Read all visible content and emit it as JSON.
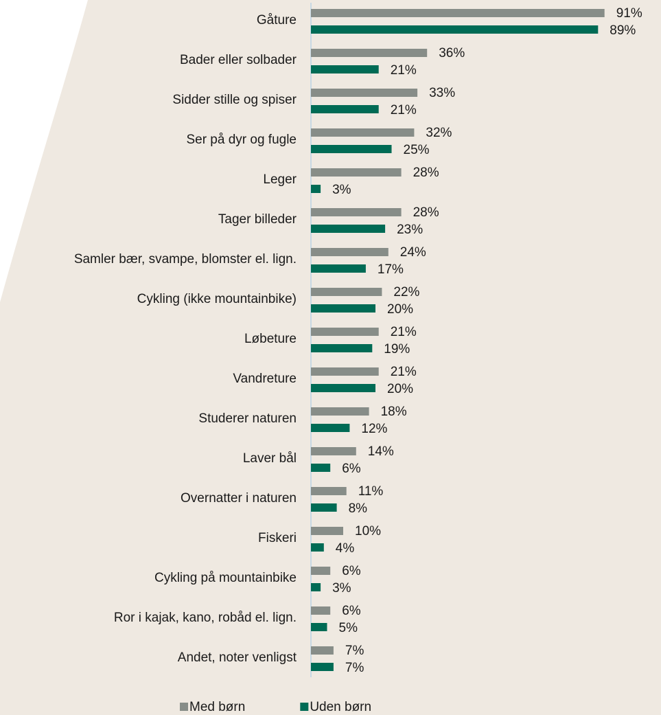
{
  "chart_data": {
    "type": "hbar",
    "categories": [
      "Gåture",
      "Bader eller solbader",
      "Sidder stille og spiser",
      "Ser på dyr og fugle",
      "Leger",
      "Tager billeder",
      "Samler bær, svampe, blomster el. lign.",
      "Cykling (ikke mountainbike)",
      "Løbeture",
      "Vandreture",
      "Studerer naturen",
      "Laver bål",
      "Overnatter i naturen",
      "Fiskeri",
      "Cykling på mountainbike",
      "Ror i kajak, kano, robåd el. lign.",
      "Andet, noter venligst"
    ],
    "series": [
      {
        "name": "Med børn",
        "color": "#878d88",
        "values": [
          91,
          36,
          33,
          32,
          28,
          28,
          24,
          22,
          21,
          21,
          18,
          14,
          11,
          10,
          6,
          6,
          7
        ],
        "value_labels": [
          "91%",
          "36%",
          "33%",
          "32%",
          "28%",
          "28%",
          "24%",
          "22%",
          "21%",
          "21%",
          "18%",
          "14%",
          "11%",
          "10%",
          "6%",
          "6%",
          "7%"
        ]
      },
      {
        "name": "Uden børn",
        "color": "#006b55",
        "values": [
          89,
          21,
          21,
          25,
          3,
          23,
          17,
          20,
          19,
          20,
          12,
          6,
          8,
          4,
          3,
          5,
          7
        ],
        "value_labels": [
          "89%",
          "21%",
          "21%",
          "25%",
          "3%",
          "23%",
          "17%",
          "20%",
          "19%",
          "20%",
          "12%",
          "6%",
          "8%",
          "4%",
          "3%",
          "5%",
          "7%"
        ]
      }
    ],
    "xlim": [
      0,
      100
    ],
    "legend": "bottom"
  }
}
